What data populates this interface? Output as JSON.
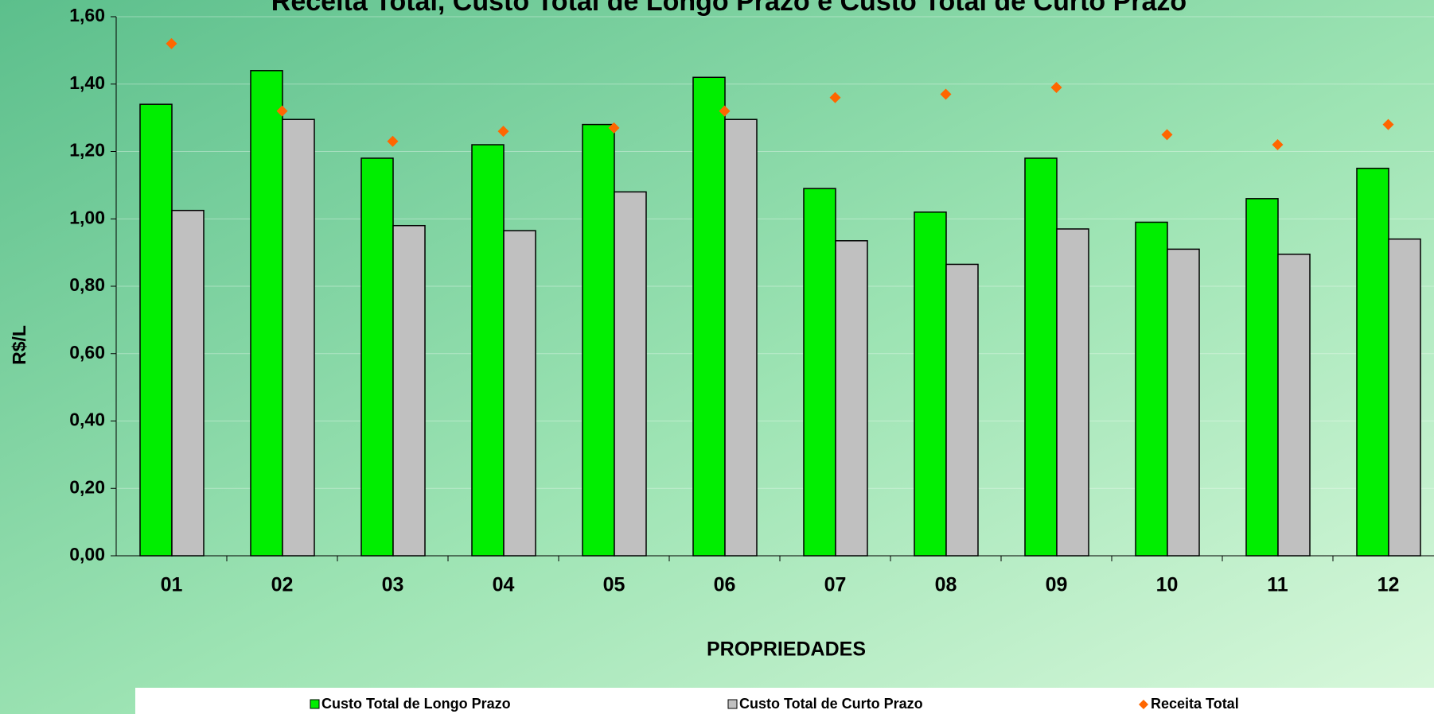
{
  "chart_data": {
    "type": "bar",
    "title": "Receita Total, Custo Total de Longo Prazo e Custo Total de Curto Prazo",
    "x_label": "PROPRIEDADES",
    "y_label": "R$/L",
    "categories": [
      "01",
      "02",
      "03",
      "04",
      "05",
      "06",
      "07",
      "08",
      "09",
      "10",
      "11",
      "12"
    ],
    "series": [
      {
        "name": "Custo Total de Longo Prazo",
        "type": "bar",
        "color": "#00ee00",
        "values": [
          1.34,
          1.44,
          1.18,
          1.22,
          1.28,
          1.42,
          1.09,
          1.02,
          1.18,
          0.99,
          1.06,
          1.15
        ]
      },
      {
        "name": "Custo Total de Curto Prazo",
        "type": "bar",
        "color": "#c0c0c0",
        "values": [
          1.025,
          1.295,
          0.98,
          0.965,
          1.08,
          1.295,
          0.935,
          0.865,
          0.97,
          0.91,
          0.895,
          0.94
        ]
      },
      {
        "name": "Receita Total",
        "type": "scatter",
        "color": "#ff6600",
        "values": [
          1.52,
          1.32,
          1.23,
          1.26,
          1.27,
          1.32,
          1.36,
          1.37,
          1.39,
          1.25,
          1.22,
          1.28
        ]
      }
    ],
    "ylim": [
      0,
      1.6
    ],
    "yticks": [
      {
        "value": 0,
        "label": "0,00"
      },
      {
        "value": 0.2,
        "label": "0,20"
      },
      {
        "value": 0.4,
        "label": "0,40"
      },
      {
        "value": 0.6,
        "label": "0,60"
      },
      {
        "value": 0.8,
        "label": "0,80"
      },
      {
        "value": 1.0,
        "label": "1,00"
      },
      {
        "value": 1.2,
        "label": "1,20"
      },
      {
        "value": 1.4,
        "label": "1,40"
      },
      {
        "value": 1.6,
        "label": "1,60"
      }
    ],
    "grid": true,
    "legend": "bottom"
  }
}
